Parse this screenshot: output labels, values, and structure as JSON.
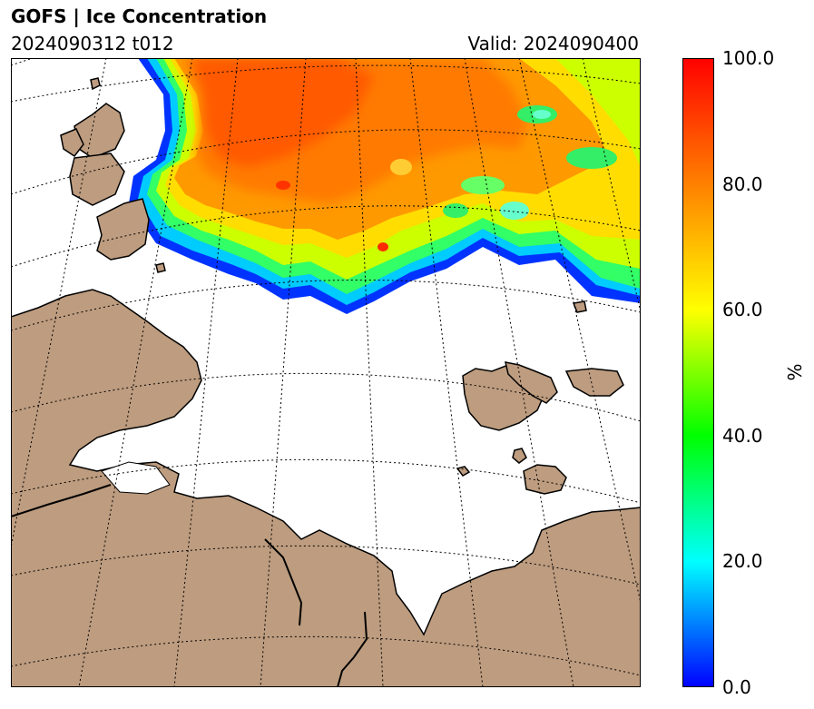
{
  "header": {
    "title": "GOFS  |  Ice Concentration",
    "run": "2024090312 t012",
    "valid": "Valid: 2024090400"
  },
  "colorbar": {
    "unit": "%",
    "ticks": [
      "0.0",
      "20.0",
      "40.0",
      "60.0",
      "80.0",
      "100.0"
    ],
    "tick_values": [
      0,
      20,
      40,
      60,
      80,
      100
    ],
    "range": [
      0,
      100
    ],
    "colors": [
      "#0000ff",
      "#00ffff",
      "#00ff00",
      "#ffff00",
      "#ff8000",
      "#ff0000"
    ]
  },
  "map": {
    "land_color": "#bd9c7f",
    "ocean_color": "#ffffff",
    "graticule_style": "dotted"
  }
}
